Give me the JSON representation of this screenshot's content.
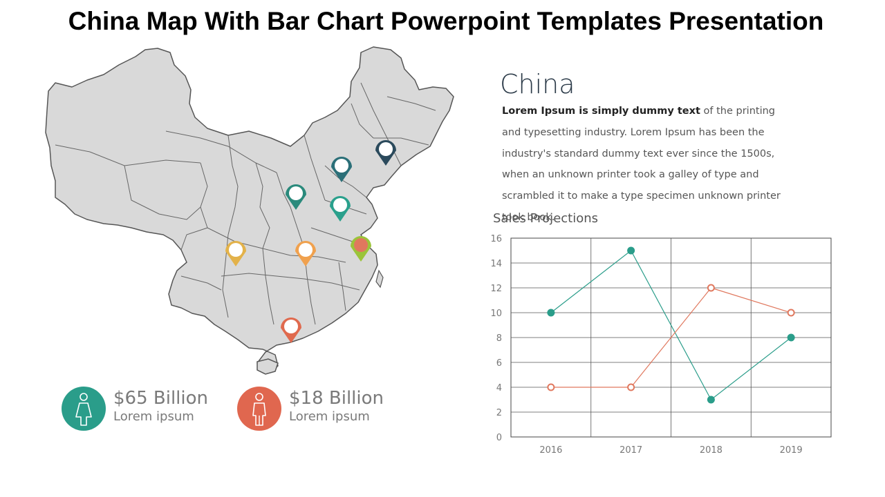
{
  "slide": {
    "title": "China Map With Bar Chart Powerpoint Templates Presentation"
  },
  "info": {
    "heading": "China",
    "body_bold": "Lorem Ipsum is simply dummy text",
    "body_rest": " of the printing and typesetting industry. Lorem Ipsum has been the industry's standard dummy text ever since the 1500s, when an unknown printer took a galley of type and scrambled it to make a type specimen unknown printer took book."
  },
  "stats": [
    {
      "amount": "$65 Billion",
      "caption": "Lorem ipsum",
      "color": "#2a9d8a",
      "icon": "female-person-icon"
    },
    {
      "amount": "$18 Billion",
      "caption": "Lorem ipsum",
      "color": "#e0674f",
      "icon": "male-person-icon"
    }
  ],
  "map": {
    "fill_color": "#d9d9d9",
    "border_color": "#555555",
    "markers": [
      {
        "color": "#2b4a5c",
        "name": "marker-northeast"
      },
      {
        "color": "#2b6f78",
        "name": "marker-beijing"
      },
      {
        "color": "#2a8a7c",
        "name": "marker-shanxi"
      },
      {
        "color": "#2aa08c",
        "name": "marker-shandong"
      },
      {
        "color": "#9bc43a",
        "name": "marker-shanghai"
      },
      {
        "color": "#e3b24a",
        "name": "marker-sichuan"
      },
      {
        "color": "#f0a14e",
        "name": "marker-hubei"
      },
      {
        "color": "#e06a4e",
        "name": "marker-guangdong"
      }
    ]
  },
  "chart_data": {
    "type": "line",
    "title": "Sales Projections",
    "categories": [
      "2016",
      "2017",
      "2018",
      "2019"
    ],
    "ylim": [
      0,
      16
    ],
    "yticks": [
      0,
      2,
      4,
      6,
      8,
      10,
      12,
      14,
      16
    ],
    "grid": true,
    "series": [
      {
        "values": [
          10,
          15,
          3,
          8
        ],
        "color": "#2a9d8a",
        "marker": "filled"
      },
      {
        "values": [
          4,
          4,
          12,
          10
        ],
        "color": "#e0785e",
        "marker": "hollow"
      }
    ]
  }
}
